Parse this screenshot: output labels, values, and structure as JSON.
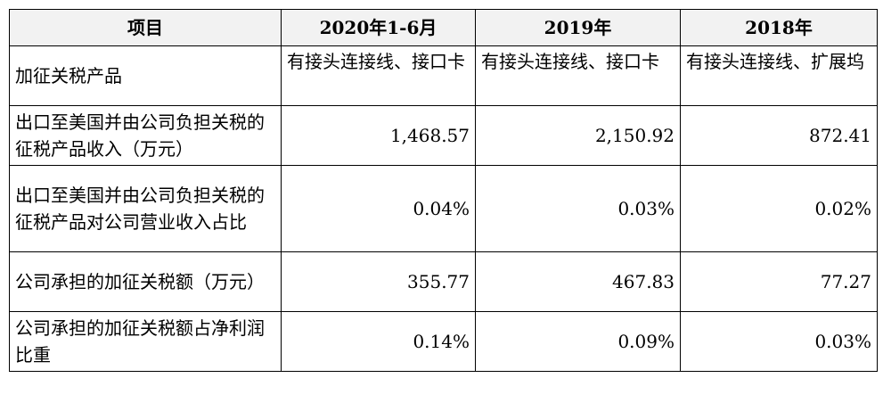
{
  "table": {
    "headers": [
      "项目",
      "2020年1-6月",
      "2019年",
      "2018年"
    ],
    "rows": [
      {
        "label": "加征关税产品",
        "cells": [
          "有接头连接线、接口卡",
          "有接头连接线、接口卡",
          "有接头连接线、扩展坞"
        ]
      },
      {
        "label": "出口至美国并由公司负担关税的征税产品收入（万元）",
        "cells": [
          "1,468.57",
          "2,150.92",
          "872.41"
        ]
      },
      {
        "label": "出口至美国并由公司负担关税的征税产品对公司营业收入占比",
        "cells": [
          "0.04%",
          "0.03%",
          "0.02%"
        ]
      },
      {
        "label": "公司承担的加征关税额（万元）",
        "cells": [
          "355.77",
          "467.83",
          "77.27"
        ]
      },
      {
        "label": "公司承担的加征关税额占净利润比重",
        "cells": [
          "0.14%",
          "0.09%",
          "0.03%"
        ]
      }
    ]
  }
}
